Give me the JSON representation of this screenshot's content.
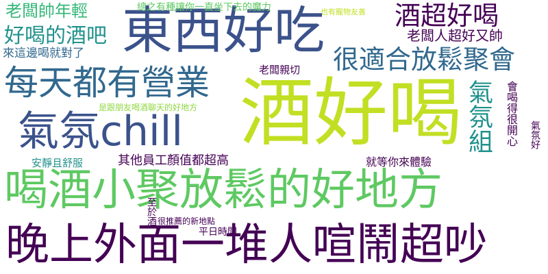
{
  "colors": {
    "background": "#ffffff",
    "dark_purple": "#440154",
    "indigo": "#3b528b",
    "slate_blue": "#31688e",
    "teal": "#21918c",
    "green": "#35b779",
    "light_green": "#5ec962",
    "lime": "#90d743",
    "yellow_green": "#c2df23"
  },
  "words": {
    "jiu_hao_he": "酒好喝",
    "he_jiu_xiao_ju": "喝酒小聚放鬆的好地方",
    "wan_shang": "晚上外面一堆人喧鬧超吵",
    "dong_xi_hao_chi": "東西好吃",
    "mei_tian": "每天都有營業",
    "qi_fen_chill": "氣氛chill",
    "hen_shi_he": "很適合放鬆聚會",
    "jiu_chao_hao_he": "酒超好喝",
    "lao_ban_shuai": "老闆帥年輕",
    "hao_he_de_jiu_ba": "好喝的酒吧",
    "lai_zhe_bian": "來這邊喝就對了",
    "zong_zhi": "總之有種讓你一直坐下去的魔力",
    "ye_you_chong": "也有寵物友善",
    "lao_ban_ren": "老闆人超好又帥",
    "lao_ban_qin_qie": "老闆親切",
    "shi_gen_peng_you": "是跟朋友喝酒聊天的好地方",
    "qi_fen_zu": "氣氛組",
    "hui_he_de_hen": "會喝得很開心",
    "qi_fen_hao": "氣氛好",
    "an_jing": "安靜且舒服",
    "qi_ta_yuan_gong": "其他員工顏值都超高",
    "jiu_deng_ni": "就等你來體驗",
    "zhi_yu_jiu": "至於酒",
    "hen_tui_jian": "很推薦的新地點",
    "ping_ri_shi_jian": "平日時間"
  }
}
